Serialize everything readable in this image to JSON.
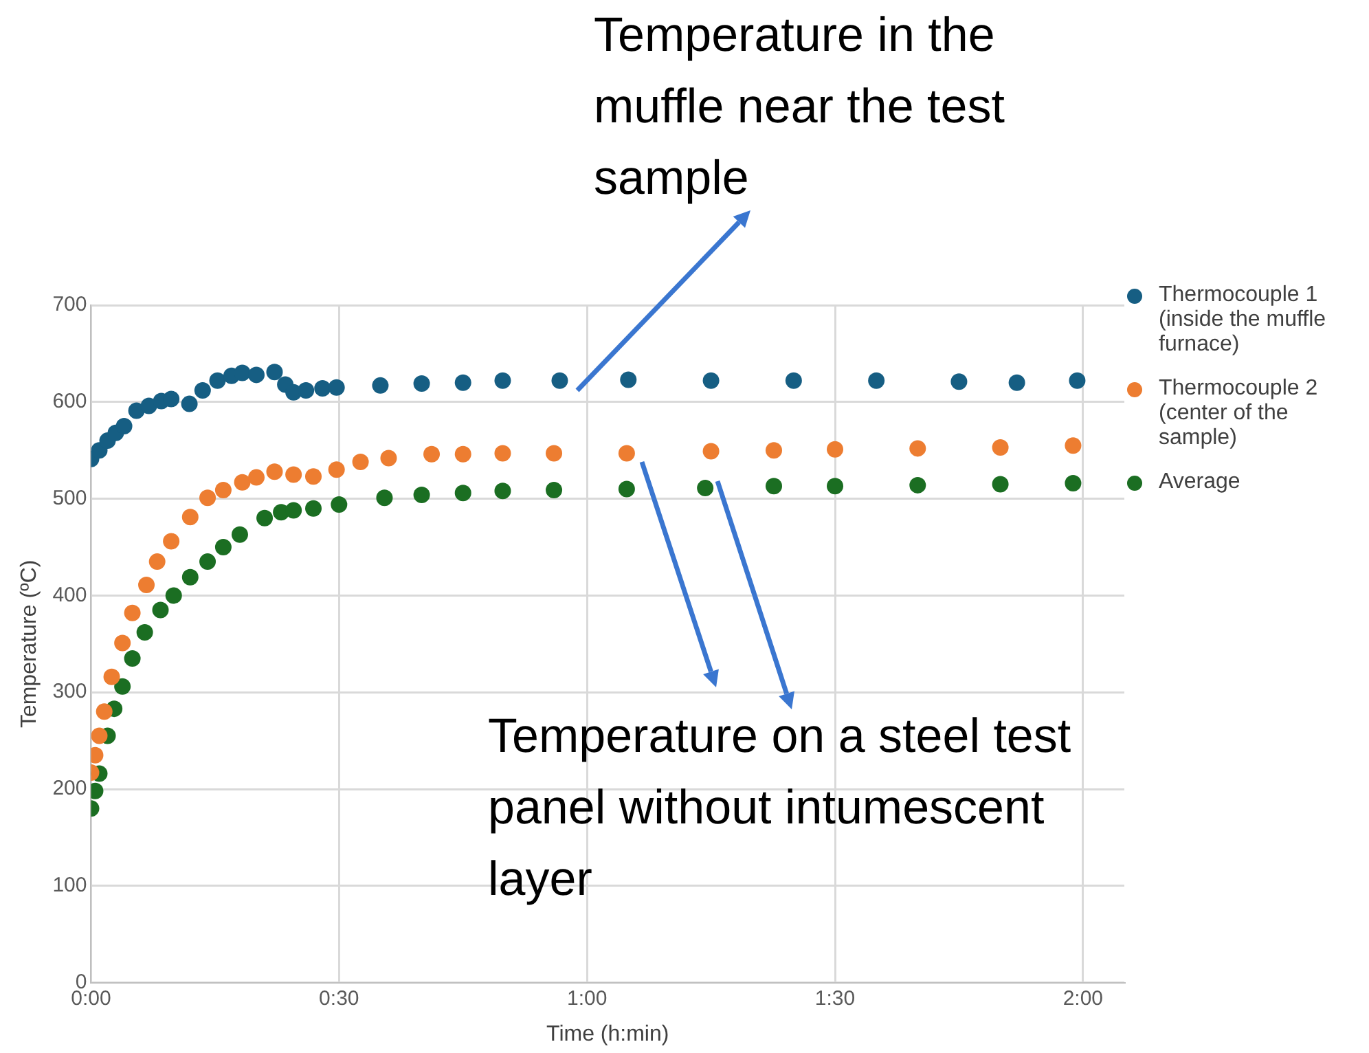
{
  "chart_data": {
    "type": "scatter",
    "xlabel": "Time (h:min)",
    "ylabel": "Temperature (ºC)",
    "xlim": [
      0,
      125
    ],
    "xticks": [
      {
        "value": 0,
        "label": "0:00"
      },
      {
        "value": 30,
        "label": "0:30"
      },
      {
        "value": 60,
        "label": "1:00"
      },
      {
        "value": 90,
        "label": "1:30"
      },
      {
        "value": 120,
        "label": "2:00"
      }
    ],
    "ylim": [
      0,
      700
    ],
    "yticks": [
      0,
      100,
      200,
      300,
      400,
      500,
      600,
      700
    ],
    "grid": true,
    "legend": "right",
    "marker": "circle",
    "annotations": [
      "Temperature in the muffle near the test sample",
      "Temperature on a steel test panel without intumescent layer"
    ],
    "series": [
      {
        "name": "Thermocouple 1 (inside the muffle furnace)",
        "color": "#165e83",
        "x": [
          0,
          1,
          2,
          3,
          4,
          5.5,
          7,
          8.5,
          9.7,
          11.9,
          13.5,
          15.3,
          17,
          18.3,
          20,
          22.2,
          23.5,
          24.5,
          26,
          28,
          29.7,
          35,
          40,
          45,
          49.8,
          56.7,
          65,
          75,
          85,
          95,
          105,
          112,
          119.3
        ],
        "values": [
          541,
          550,
          560,
          568,
          575,
          591,
          596,
          601,
          603,
          598,
          612,
          622,
          627,
          630,
          628,
          631,
          618,
          610,
          612,
          614,
          615,
          617,
          619,
          620,
          622,
          622,
          623,
          622,
          622,
          622,
          621,
          620,
          622
        ]
      },
      {
        "name": "Thermocouple 2 (center of the sample)",
        "color": "#ed7d31",
        "x": [
          0,
          0.5,
          1,
          1.6,
          2.5,
          3.8,
          5,
          6.7,
          8,
          9.7,
          12,
          14.1,
          16,
          18.3,
          20,
          22.2,
          24.5,
          26.9,
          29.7,
          32.6,
          36,
          41.2,
          45,
          49.8,
          56,
          64.8,
          75,
          82.6,
          90,
          100,
          110,
          118.8
        ],
        "values": [
          217,
          235,
          255,
          280,
          316,
          351,
          382,
          411,
          435,
          456,
          481,
          501,
          509,
          517,
          522,
          528,
          525,
          523,
          530,
          538,
          542,
          546,
          546,
          547,
          547,
          547,
          549,
          550,
          551,
          552,
          553,
          555
        ]
      },
      {
        "name": "Average",
        "color": "#1b6e22",
        "x": [
          0,
          0.5,
          1,
          2,
          2.8,
          3.8,
          5,
          6.5,
          8.4,
          10,
          12,
          14.1,
          16,
          18,
          21,
          23,
          24.5,
          26.9,
          30,
          35.5,
          40,
          45,
          49.8,
          56,
          64.8,
          74.3,
          82.6,
          90,
          100,
          110,
          118.8
        ],
        "values": [
          180,
          198,
          216,
          255,
          283,
          306,
          335,
          362,
          385,
          400,
          419,
          435,
          450,
          463,
          480,
          486,
          488,
          490,
          494,
          501,
          504,
          506,
          508,
          509,
          510,
          511,
          513,
          513,
          514,
          515,
          516
        ]
      }
    ]
  }
}
